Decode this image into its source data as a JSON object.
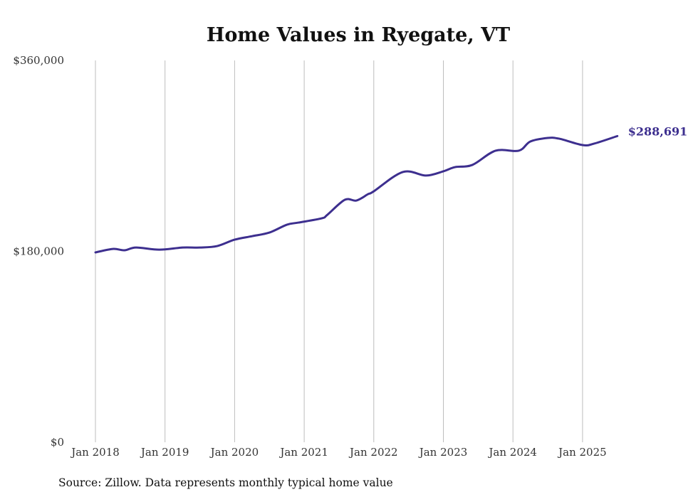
{
  "chart_data": {
    "type": "line",
    "title": "Home Values in Ryegate, VT",
    "xlabel": "",
    "ylabel": "",
    "ylim": [
      0,
      360000
    ],
    "yticks": [
      0,
      180000,
      360000
    ],
    "ytick_labels": [
      "$0",
      "$180,000",
      "$360,000"
    ],
    "xticks": [
      "2018-01",
      "2019-01",
      "2020-01",
      "2021-01",
      "2022-01",
      "2023-01",
      "2024-01",
      "2025-01"
    ],
    "xtick_labels": [
      "Jan 2018",
      "Jan 2019",
      "Jan 2020",
      "Jan 2021",
      "Jan 2022",
      "Jan 2023",
      "Jan 2024",
      "Jan 2025"
    ],
    "grid": "vertical",
    "line_color": "#3d2f8f",
    "series": [
      {
        "name": "Typical home value",
        "points": [
          [
            "2018-01",
            179000
          ],
          [
            "2018-04",
            182300
          ],
          [
            "2018-06",
            181000
          ],
          [
            "2018-08",
            183600
          ],
          [
            "2018-12",
            181600
          ],
          [
            "2019-04",
            183600
          ],
          [
            "2019-07",
            183600
          ],
          [
            "2019-10",
            185000
          ],
          [
            "2020-01",
            191000
          ],
          [
            "2020-04",
            194300
          ],
          [
            "2020-07",
            197700
          ],
          [
            "2020-10",
            205100
          ],
          [
            "2020-12",
            207100
          ],
          [
            "2021-04",
            211100
          ],
          [
            "2021-05",
            214500
          ],
          [
            "2021-08",
            228600
          ],
          [
            "2021-10",
            227900
          ],
          [
            "2021-12",
            233900
          ],
          [
            "2022-01",
            236600
          ],
          [
            "2022-06",
            254800
          ],
          [
            "2022-10",
            251500
          ],
          [
            "2023-01",
            255500
          ],
          [
            "2023-03",
            259400
          ],
          [
            "2023-06",
            261500
          ],
          [
            "2023-10",
            274900
          ],
          [
            "2024-02",
            274900
          ],
          [
            "2024-04",
            283600
          ],
          [
            "2024-07",
            286900
          ],
          [
            "2024-09",
            286200
          ],
          [
            "2025-01",
            280200
          ],
          [
            "2025-03",
            281600
          ],
          [
            "2025-07",
            288691
          ]
        ]
      }
    ],
    "end_label": "$288,691",
    "source": "Source: Zillow. Data represents monthly typical home value"
  }
}
